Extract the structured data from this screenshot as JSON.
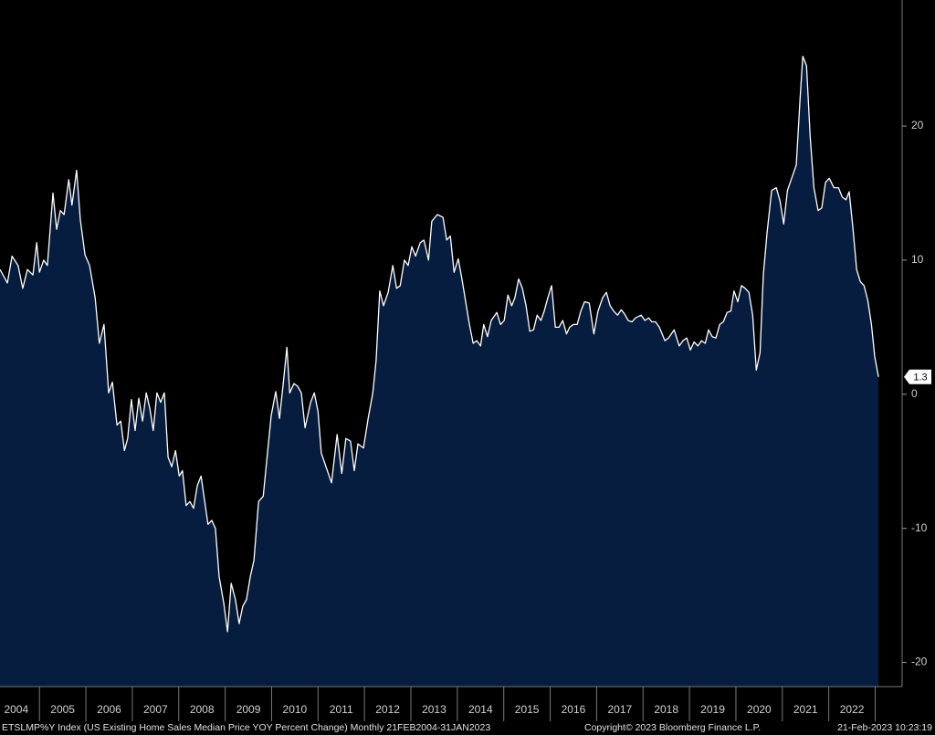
{
  "chart_data": {
    "type": "area",
    "color": "#061d3f",
    "line_color": "#ffffff",
    "background": "#000000",
    "x": [
      2004.15,
      2004.31,
      2004.41,
      2004.54,
      2004.64,
      2004.74,
      2004.86,
      2004.94,
      2005.0,
      2005.09,
      2005.17,
      2005.29,
      2005.37,
      2005.45,
      2005.53,
      2005.63,
      2005.7,
      2005.8,
      2005.88,
      2005.98,
      2006.08,
      2006.2,
      2006.29,
      2006.39,
      2006.49,
      2006.57,
      2006.67,
      2006.75,
      2006.83,
      2006.9,
      2006.98,
      2007.06,
      2007.14,
      2007.22,
      2007.3,
      2007.38,
      2007.45,
      2007.53,
      2007.61,
      2007.69,
      2007.77,
      2007.85,
      2007.93,
      2008.01,
      2008.08,
      2008.16,
      2008.24,
      2008.32,
      2008.4,
      2008.48,
      2008.56,
      2008.63,
      2008.71,
      2008.79,
      2008.87,
      2008.97,
      2009.05,
      2009.13,
      2009.22,
      2009.3,
      2009.38,
      2009.46,
      2009.54,
      2009.62,
      2009.72,
      2009.82,
      2009.89,
      2009.99,
      2010.09,
      2010.17,
      2010.25,
      2010.33,
      2010.39,
      2010.48,
      2010.56,
      2010.64,
      2010.72,
      2010.84,
      2010.92,
      2011.0,
      2011.07,
      2011.17,
      2011.29,
      2011.41,
      2011.51,
      2011.6,
      2011.7,
      2011.78,
      2011.86,
      2011.98,
      2012.08,
      2012.18,
      2012.25,
      2012.33,
      2012.41,
      2012.51,
      2012.61,
      2012.69,
      2012.77,
      2012.86,
      2012.94,
      2013.02,
      2013.1,
      2013.2,
      2013.28,
      2013.38,
      2013.45,
      2013.57,
      2013.69,
      2013.77,
      2013.85,
      2013.93,
      2014.02,
      2014.1,
      2014.18,
      2014.26,
      2014.34,
      2014.42,
      2014.5,
      2014.57,
      2014.65,
      2014.73,
      2014.85,
      2014.93,
      2015.01,
      2015.09,
      2015.17,
      2015.24,
      2015.32,
      2015.4,
      2015.48,
      2015.56,
      2015.64,
      2015.72,
      2015.8,
      2015.87,
      2015.95,
      2016.03,
      2016.11,
      2016.19,
      2016.27,
      2016.35,
      2016.42,
      2016.5,
      2016.58,
      2016.66,
      2016.74,
      2016.84,
      2016.94,
      2017.03,
      2017.13,
      2017.21,
      2017.29,
      2017.37,
      2017.45,
      2017.53,
      2017.6,
      2017.68,
      2017.76,
      2017.84,
      2017.96,
      2018.04,
      2018.12,
      2018.19,
      2018.27,
      2018.35,
      2018.47,
      2018.55,
      2018.67,
      2018.78,
      2018.86,
      2018.94,
      2019.02,
      2019.1,
      2019.18,
      2019.26,
      2019.34,
      2019.41,
      2019.49,
      2019.57,
      2019.65,
      2019.73,
      2019.81,
      2019.89,
      2019.96,
      2020.04,
      2020.12,
      2020.2,
      2020.28,
      2020.36,
      2020.44,
      2020.52,
      2020.59,
      2020.67,
      2020.77,
      2020.87,
      2020.95,
      2021.03,
      2021.11,
      2021.2,
      2021.3,
      2021.38,
      2021.44,
      2021.52,
      2021.6,
      2021.68,
      2021.77,
      2021.85,
      2021.93,
      2022.01,
      2022.11,
      2022.21,
      2022.29,
      2022.37,
      2022.44,
      2022.52,
      2022.6,
      2022.68,
      2022.76,
      2022.84,
      2022.92,
      2022.99,
      2023.07
    ],
    "values": [
      9.3,
      8.3,
      10.3,
      9.6,
      7.9,
      9.3,
      8.9,
      11.3,
      9.1,
      10.0,
      9.6,
      15.0,
      12.3,
      13.7,
      13.4,
      16.0,
      14.1,
      16.7,
      13.0,
      10.4,
      9.6,
      7.2,
      3.8,
      5.2,
      0.1,
      0.9,
      -2.3,
      -2.0,
      -4.2,
      -3.3,
      -0.4,
      -2.7,
      -0.3,
      -2.0,
      0.1,
      -1.1,
      -2.7,
      0.1,
      -0.6,
      0.1,
      -4.7,
      -5.4,
      -4.2,
      -6.1,
      -5.7,
      -8.3,
      -8.0,
      -8.5,
      -6.8,
      -6.1,
      -8.0,
      -9.7,
      -9.4,
      -10.0,
      -13.6,
      -15.6,
      -17.7,
      -14.1,
      -15.3,
      -17.1,
      -15.8,
      -15.3,
      -13.6,
      -12.4,
      -8.0,
      -7.6,
      -5.1,
      -1.6,
      0.2,
      -1.8,
      0.8,
      3.5,
      0.1,
      0.8,
      0.6,
      0.1,
      -2.5,
      -0.6,
      0.1,
      -1.3,
      -4.4,
      -5.4,
      -6.6,
      -3.0,
      -5.9,
      -3.3,
      -3.5,
      -5.7,
      -3.7,
      -4.0,
      -1.8,
      0.1,
      2.5,
      7.7,
      6.6,
      7.6,
      9.6,
      7.9,
      8.1,
      10.0,
      9.6,
      11.0,
      10.3,
      11.3,
      11.5,
      10.0,
      12.9,
      13.4,
      13.2,
      11.5,
      11.8,
      9.1,
      10.1,
      8.6,
      6.9,
      5.2,
      3.8,
      4.0,
      3.6,
      5.2,
      4.3,
      5.5,
      6.1,
      5.2,
      5.5,
      7.4,
      6.6,
      7.2,
      8.6,
      7.9,
      6.6,
      4.7,
      4.8,
      5.9,
      5.5,
      6.2,
      7.2,
      8.1,
      5.0,
      5.0,
      5.5,
      4.5,
      5.0,
      5.2,
      5.2,
      6.2,
      6.9,
      6.8,
      4.5,
      6.2,
      7.2,
      7.6,
      6.6,
      6.2,
      5.9,
      6.3,
      6.0,
      5.5,
      5.4,
      5.7,
      5.9,
      5.5,
      5.7,
      5.4,
      5.4,
      5.0,
      4.0,
      4.2,
      4.8,
      3.6,
      4.0,
      4.2,
      3.3,
      3.9,
      3.6,
      4.0,
      3.8,
      4.8,
      4.3,
      4.2,
      5.2,
      5.4,
      6.1,
      6.2,
      7.7,
      6.9,
      8.1,
      7.9,
      7.6,
      5.9,
      1.8,
      3.1,
      8.9,
      12.0,
      15.2,
      15.4,
      14.4,
      12.7,
      15.2,
      16.1,
      17.1,
      21.9,
      25.2,
      24.5,
      19.2,
      15.4,
      13.7,
      13.9,
      15.8,
      16.1,
      15.4,
      15.4,
      14.7,
      14.5,
      15.1,
      12.4,
      9.3,
      8.4,
      8.1,
      7.0,
      5.2,
      2.8,
      1.3
    ],
    "xlim": [
      2004.15,
      2023.58
    ],
    "xticks": [
      {
        "value": 2004.5,
        "label": "2004"
      },
      {
        "value": 2005.5,
        "label": "2005"
      },
      {
        "value": 2006.5,
        "label": "2006"
      },
      {
        "value": 2007.5,
        "label": "2007"
      },
      {
        "value": 2008.5,
        "label": "2008"
      },
      {
        "value": 2009.5,
        "label": "2009"
      },
      {
        "value": 2010.5,
        "label": "2010"
      },
      {
        "value": 2011.5,
        "label": "2011"
      },
      {
        "value": 2012.5,
        "label": "2012"
      },
      {
        "value": 2013.5,
        "label": "2013"
      },
      {
        "value": 2014.5,
        "label": "2014"
      },
      {
        "value": 2015.5,
        "label": "2015"
      },
      {
        "value": 2016.5,
        "label": "2016"
      },
      {
        "value": 2017.5,
        "label": "2017"
      },
      {
        "value": 2018.5,
        "label": "2018"
      },
      {
        "value": 2019.5,
        "label": "2019"
      },
      {
        "value": 2020.5,
        "label": "2020"
      },
      {
        "value": 2021.5,
        "label": "2021"
      },
      {
        "value": 2022.5,
        "label": "2022"
      }
    ],
    "ylim": [
      -21.8,
      29.4
    ],
    "yticks": [
      -20,
      -10,
      0,
      10,
      20
    ],
    "yaxis_side": "right",
    "source": "ETSLMP%Y Index (US Existing Home Sales Median Price YOY Percent Change)  Monthly 21FEB2004-31JAN2023",
    "copyright": "Copyright© 2023 Bloomberg Finance L.P.",
    "timestamp": "21-Feb-2023 10:23:19"
  }
}
